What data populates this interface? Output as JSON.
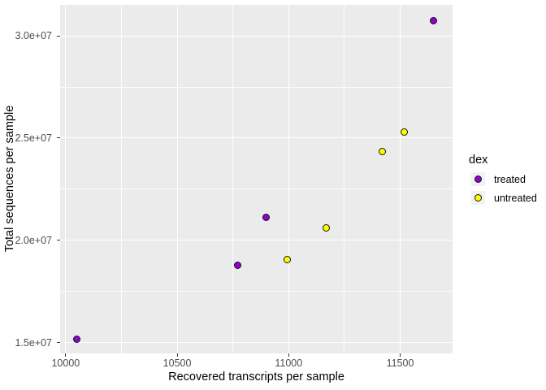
{
  "style": {
    "background": "#FFFFFF",
    "panel_background": "#EBEBEB",
    "grid_color": "#FFFFFF",
    "axis_text_color": "#4D4D4D",
    "axis_title_color": "#000000",
    "legend_key_background": "#F2F2F2",
    "point_outline": "#111111"
  },
  "chart_data": {
    "type": "scatter",
    "title": "",
    "xlabel": "Recovered transcripts per sample",
    "ylabel": "Total sequences per sample",
    "xlim": [
      9975,
      11735
    ],
    "ylim": [
      14480000,
      31510000
    ],
    "grid": "on",
    "x_ticks": {
      "values": [
        10000,
        10500,
        11000,
        11500
      ],
      "labels": [
        "10000",
        "10500",
        "11000",
        "11500"
      ],
      "minor": [
        10250,
        10750,
        11250,
        11750
      ]
    },
    "y_ticks": {
      "values": [
        15000000,
        20000000,
        25000000,
        30000000
      ],
      "labels": [
        "1.5e+07",
        "2.0e+07",
        "2.5e+07",
        "3.0e+07"
      ],
      "minor": [
        17500000,
        22500000,
        27500000,
        32500000
      ]
    },
    "legend": {
      "title": "dex",
      "position": "right"
    },
    "series": [
      {
        "name": "treated",
        "color": "#9400D3",
        "points": [
          [
            10050,
            15160000
          ],
          [
            10770,
            18770000
          ],
          [
            10900,
            21110000
          ],
          [
            11650,
            30730000
          ]
        ]
      },
      {
        "name": "untreated",
        "color": "#FFFF00",
        "points": [
          [
            10995,
            19060000
          ],
          [
            11170,
            20600000
          ],
          [
            11420,
            24360000
          ],
          [
            11520,
            25280000
          ]
        ]
      }
    ]
  }
}
